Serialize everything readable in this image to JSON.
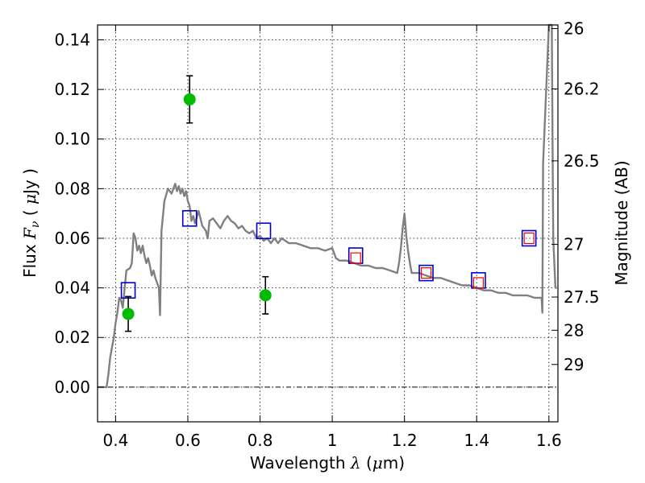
{
  "chart_data": {
    "type": "scatter",
    "xlabel": "Wavelength",
    "xlabel_symbol": "λ",
    "xlabel_unit_open": "(",
    "xlabel_unit_mu": "μ",
    "xlabel_unit_rest": "m)",
    "ylabel": "Flux",
    "ylabel_symbol": "F",
    "ylabel_sub": "ν",
    "ylabel_unit_open": "(",
    "ylabel_unit_mu": "μ",
    "ylabel_unit_rest": "Jy )",
    "y2label": "Magnitude (AB)",
    "xlim": [
      0.35,
      1.625
    ],
    "ylim": [
      -0.014,
      0.146
    ],
    "grid": true,
    "x_ticks": [
      {
        "value": 0.4,
        "label": "0.4"
      },
      {
        "value": 0.6,
        "label": "0.6"
      },
      {
        "value": 0.8,
        "label": "0.8"
      },
      {
        "value": 1.0,
        "label": "1"
      },
      {
        "value": 1.2,
        "label": "1.2"
      },
      {
        "value": 1.4,
        "label": "1.4"
      },
      {
        "value": 1.6,
        "label": "1.6"
      }
    ],
    "y_ticks": [
      {
        "value": 0.0,
        "label": "0.00"
      },
      {
        "value": 0.02,
        "label": "0.02"
      },
      {
        "value": 0.04,
        "label": "0.04"
      },
      {
        "value": 0.06,
        "label": "0.06"
      },
      {
        "value": 0.08,
        "label": "0.08"
      },
      {
        "value": 0.1,
        "label": "0.10"
      },
      {
        "value": 0.12,
        "label": "0.12"
      },
      {
        "value": 0.14,
        "label": "0.14"
      }
    ],
    "y2_ticks": [
      {
        "value": 26.0,
        "label": "26"
      },
      {
        "value": 26.2,
        "label": "26.2"
      },
      {
        "value": 26.5,
        "label": "26.5"
      },
      {
        "value": 27.0,
        "label": "27"
      },
      {
        "value": 27.5,
        "label": "27.5"
      },
      {
        "value": 28.0,
        "label": "28"
      },
      {
        "value": 29.0,
        "label": "29"
      }
    ],
    "model_sed": {
      "color": "#808080",
      "x": [
        0.35,
        0.375,
        0.38,
        0.385,
        0.39,
        0.395,
        0.4,
        0.405,
        0.41,
        0.415,
        0.42,
        0.425,
        0.43,
        0.44,
        0.445,
        0.45,
        0.455,
        0.46,
        0.465,
        0.47,
        0.475,
        0.48,
        0.485,
        0.49,
        0.495,
        0.5,
        0.505,
        0.51,
        0.515,
        0.52,
        0.523,
        0.527,
        0.535,
        0.545,
        0.555,
        0.565,
        0.57,
        0.575,
        0.58,
        0.585,
        0.59,
        0.595,
        0.6,
        0.605,
        0.61,
        0.615,
        0.62,
        0.63,
        0.64,
        0.65,
        0.655,
        0.66,
        0.67,
        0.68,
        0.69,
        0.7,
        0.71,
        0.72,
        0.73,
        0.74,
        0.75,
        0.76,
        0.77,
        0.78,
        0.79,
        0.8,
        0.81,
        0.82,
        0.83,
        0.84,
        0.85,
        0.86,
        0.88,
        0.9,
        0.92,
        0.94,
        0.96,
        0.98,
        1.0,
        1.01,
        1.02,
        1.04,
        1.06,
        1.08,
        1.1,
        1.12,
        1.14,
        1.16,
        1.18,
        1.185,
        1.19,
        1.195,
        1.2,
        1.205,
        1.21,
        1.215,
        1.22,
        1.24,
        1.26,
        1.28,
        1.3,
        1.32,
        1.34,
        1.36,
        1.38,
        1.4,
        1.42,
        1.44,
        1.46,
        1.48,
        1.5,
        1.52,
        1.54,
        1.56,
        1.58,
        1.582,
        1.584,
        1.6,
        1.606,
        1.608,
        1.61,
        1.612,
        1.618,
        1.622
      ],
      "y": [
        0.0,
        0.0,
        0.005,
        0.012,
        0.016,
        0.02,
        0.026,
        0.03,
        0.036,
        0.035,
        0.032,
        0.04,
        0.047,
        0.048,
        0.05,
        0.062,
        0.06,
        0.055,
        0.057,
        0.054,
        0.057,
        0.053,
        0.05,
        0.052,
        0.049,
        0.045,
        0.047,
        0.044,
        0.042,
        0.04,
        0.029,
        0.063,
        0.075,
        0.08,
        0.078,
        0.082,
        0.079,
        0.081,
        0.078,
        0.08,
        0.077,
        0.079,
        0.075,
        0.073,
        0.067,
        0.069,
        0.066,
        0.071,
        0.065,
        0.063,
        0.06,
        0.067,
        0.068,
        0.066,
        0.064,
        0.067,
        0.069,
        0.067,
        0.066,
        0.064,
        0.065,
        0.063,
        0.062,
        0.063,
        0.06,
        0.061,
        0.059,
        0.06,
        0.058,
        0.06,
        0.058,
        0.06,
        0.058,
        0.058,
        0.057,
        0.056,
        0.056,
        0.055,
        0.056,
        0.052,
        0.051,
        0.051,
        0.05,
        0.049,
        0.049,
        0.048,
        0.048,
        0.047,
        0.046,
        0.05,
        0.056,
        0.064,
        0.07,
        0.061,
        0.055,
        0.05,
        0.046,
        0.046,
        0.045,
        0.044,
        0.044,
        0.043,
        0.042,
        0.041,
        0.041,
        0.04,
        0.039,
        0.039,
        0.038,
        0.038,
        0.037,
        0.037,
        0.037,
        0.036,
        0.036,
        0.03,
        0.09,
        0.146,
        0.146,
        0.146,
        0.1,
        0.06,
        0.04,
        0.04
      ]
    },
    "model_photometry": {
      "marker": "square",
      "edge_color": "#0000cc",
      "x": [
        0.435,
        0.605,
        0.81,
        1.065,
        1.26,
        1.405,
        1.545
      ],
      "y": [
        0.039,
        0.068,
        0.063,
        0.053,
        0.046,
        0.043,
        0.06
      ]
    },
    "model_photometry_inner": {
      "marker": "square",
      "edge_color": "#ff0000",
      "x": [
        1.065,
        1.26,
        1.405,
        1.545
      ],
      "y": [
        0.052,
        0.046,
        0.042,
        0.06
      ]
    },
    "observed": {
      "marker": "circle",
      "color": "#00bb00",
      "x": [
        0.435,
        0.605,
        0.815
      ],
      "y": [
        0.0295,
        0.116,
        0.037
      ],
      "yerr": [
        0.007,
        0.0095,
        0.0075
      ]
    }
  }
}
